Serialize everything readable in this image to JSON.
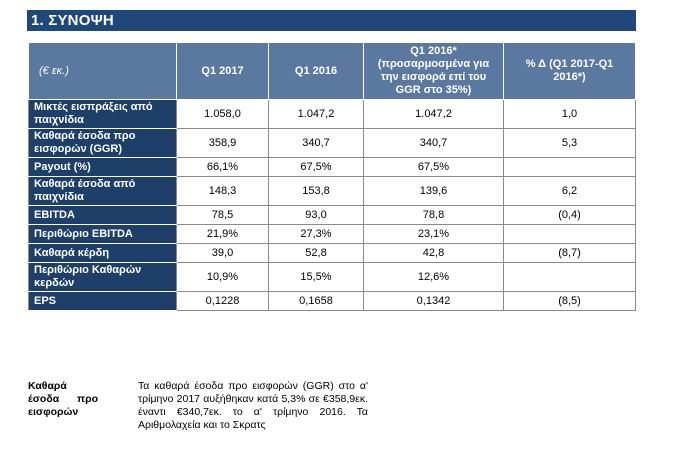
{
  "section": {
    "title": "1.  ΣΥΝΟΨΗ"
  },
  "table": {
    "headers": [
      "(€ εκ.)",
      "Q1 2017",
      "Q1 2016",
      "Q1 2016* (προσαρμοσμένα για την εισφορά επί του GGR στο 35%)",
      "% Δ (Q1 2017-Q1 2016*)"
    ],
    "rows": [
      {
        "label": "Μικτές εισπράξεις από παιχνίδια",
        "q1_2017": "1.058,0",
        "q1_2016": "1.047,2",
        "q1_2016_adj": "1.047,2",
        "pct": "1,0"
      },
      {
        "label": "Καθαρά έσοδα προ εισφορών (GGR)",
        "q1_2017": "358,9",
        "q1_2016": "340,7",
        "q1_2016_adj": "340,7",
        "pct": "5,3"
      },
      {
        "label": "Payout (%)",
        "q1_2017": "66,1%",
        "q1_2016": "67,5%",
        "q1_2016_adj": "67,5%",
        "pct": ""
      },
      {
        "label": "Καθαρά έσοδα από παιχνίδια",
        "q1_2017": "148,3",
        "q1_2016": "153,8",
        "q1_2016_adj": "139,6",
        "pct": "6,2"
      },
      {
        "label": "EBITDA",
        "q1_2017": "78,5",
        "q1_2016": "93,0",
        "q1_2016_adj": "78,8",
        "pct": "(0,4)"
      },
      {
        "label": "Περιθώριο EBITDA",
        "q1_2017": "21,9%",
        "q1_2016": "27,3%",
        "q1_2016_adj": "23,1%",
        "pct": ""
      },
      {
        "label": "Καθαρά κέρδη",
        "q1_2017": "39,0",
        "q1_2016": "52,8",
        "q1_2016_adj": "42,8",
        "pct": "(8,7)"
      },
      {
        "label": "Περιθώριο Καθαρών κερδών",
        "q1_2017": "10,9%",
        "q1_2016": "15,5%",
        "q1_2016_adj": "12,6%",
        "pct": ""
      },
      {
        "label": "EPS",
        "q1_2017": "0,1228",
        "q1_2016": "0,1658",
        "q1_2016_adj": "0,1342",
        "pct": "(8,5)"
      }
    ]
  },
  "note": {
    "title": "Καθαρά έσοδα προ εισφορών",
    "body": "Τα καθαρά έσοδα προ εισφορών (GGR) στο α' τρίμηνο 2017 αυξήθηκαν κατά 5,3% σε €358,9εκ. έναντι €340,7εκ. το α' τρίμηνο 2016. Τα Αριθμολαχεία και το Σκρατς"
  }
}
